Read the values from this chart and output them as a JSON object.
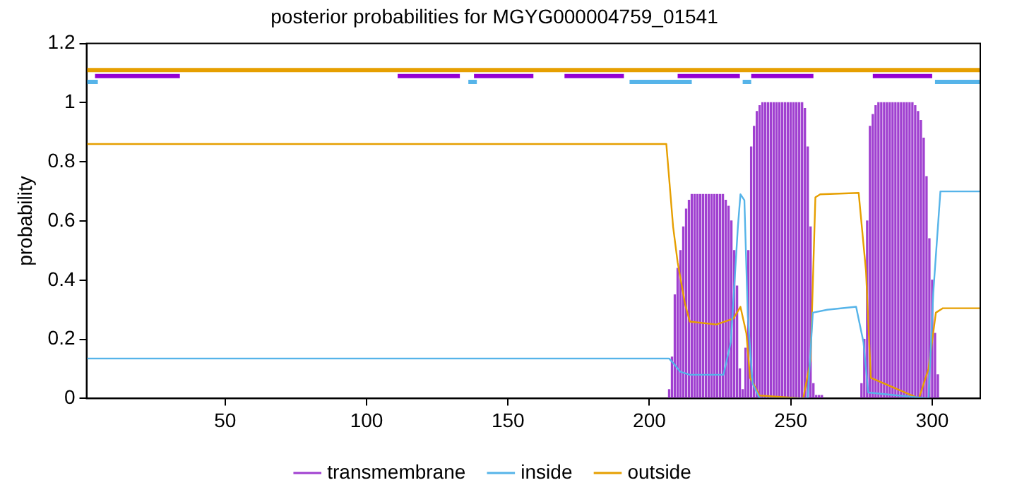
{
  "chart_data": {
    "type": "line",
    "title": "posterior probabilities for MGYG000004759_01541",
    "ylabel": "probability",
    "xlim": [
      1,
      317
    ],
    "xticks": [
      50,
      100,
      150,
      200,
      250,
      300
    ],
    "ylim": [
      0,
      1.2
    ],
    "yticks": [
      0,
      0.2,
      0.4,
      0.6,
      0.8,
      1,
      1.2
    ],
    "grid": false,
    "legend": "bottom",
    "marker": "none",
    "line_style": "solid",
    "series": [
      {
        "name": "transmembrane",
        "type": "bar",
        "color": "#a040d0",
        "x": [
          207,
          208,
          209,
          210,
          211,
          212,
          213,
          214,
          215,
          216,
          217,
          218,
          219,
          220,
          221,
          222,
          223,
          224,
          225,
          226,
          227,
          228,
          229,
          230,
          231,
          232,
          233,
          234,
          235,
          236,
          237,
          238,
          239,
          240,
          241,
          242,
          243,
          244,
          245,
          246,
          247,
          248,
          249,
          250,
          251,
          252,
          253,
          254,
          255,
          256,
          257,
          258,
          259,
          260,
          261,
          275,
          276,
          277,
          278,
          279,
          280,
          281,
          282,
          283,
          284,
          285,
          286,
          287,
          288,
          289,
          290,
          291,
          292,
          293,
          294,
          295,
          296,
          297,
          298,
          299,
          300,
          301,
          302
        ],
        "values": [
          0.03,
          0.14,
          0.35,
          0.44,
          0.5,
          0.58,
          0.64,
          0.67,
          0.69,
          0.69,
          0.69,
          0.69,
          0.69,
          0.69,
          0.69,
          0.69,
          0.69,
          0.69,
          0.69,
          0.69,
          0.67,
          0.65,
          0.6,
          0.5,
          0.38,
          0.1,
          0.03,
          0.17,
          0.5,
          0.85,
          0.92,
          0.97,
          0.99,
          1,
          1,
          1,
          1,
          1,
          1,
          1,
          1,
          1,
          1,
          1,
          1,
          1,
          1,
          1,
          0.98,
          0.85,
          0.58,
          0.05,
          0.01,
          0.01,
          0.01,
          0.05,
          0.2,
          0.6,
          0.92,
          0.96,
          0.99,
          1,
          1,
          1,
          1,
          1,
          1,
          1,
          1,
          1,
          1,
          1,
          1,
          1,
          0.99,
          0.97,
          0.94,
          0.88,
          0.75,
          0.54,
          0.4,
          0.22,
          0.08
        ]
      },
      {
        "name": "inside",
        "color": "#56b4e9",
        "x": [
          1,
          207,
          208.4,
          211,
          214.3,
          226.2,
          228.8,
          231.3,
          232.2,
          233.6,
          234.8,
          236.5,
          239,
          256,
          257.8,
          262.9,
          273.1,
          275.7,
          277.4,
          298.7,
          300.4,
          302.9,
          317
        ],
        "values": [
          0.135,
          0.135,
          0.12,
          0.09,
          0.08,
          0.08,
          0.19,
          0.58,
          0.69,
          0.67,
          0.28,
          0.05,
          0,
          0,
          0.29,
          0.3,
          0.31,
          0.19,
          0.02,
          0,
          0.36,
          0.7,
          0.7
        ]
      },
      {
        "name": "outside",
        "color": "#e69f00",
        "x": [
          1,
          206,
          208.4,
          210,
          212.6,
          214.3,
          223.7,
          229.7,
          232.2,
          234.3,
          235.6,
          239,
          254.4,
          257,
          258.7,
          260.4,
          274,
          276.6,
          278.3,
          295.3,
          298.7,
          301.3,
          303.8,
          317
        ],
        "values": [
          0.86,
          0.86,
          0.58,
          0.46,
          0.32,
          0.26,
          0.25,
          0.27,
          0.31,
          0.22,
          0.07,
          0.01,
          0,
          0.13,
          0.68,
          0.69,
          0.695,
          0.43,
          0.07,
          0,
          0.1,
          0.29,
          0.305,
          0.305
        ]
      },
      {
        "color": "#e69f00",
        "x": [
          1,
          317
        ],
        "values": [
          1.11,
          1.11
        ]
      },
      {
        "color": "#9400d3",
        "x": [
          4,
          34
        ],
        "values": [
          1.09,
          1.09
        ]
      },
      {
        "color": "#9400d3",
        "x": [
          111,
          133
        ],
        "values": [
          1.09,
          1.09
        ]
      },
      {
        "color": "#9400d3",
        "x": [
          138,
          159
        ],
        "values": [
          1.09,
          1.09
        ]
      },
      {
        "color": "#9400d3",
        "x": [
          170,
          191
        ],
        "values": [
          1.09,
          1.09
        ]
      },
      {
        "color": "#9400d3",
        "x": [
          210,
          232
        ],
        "values": [
          1.09,
          1.09
        ]
      },
      {
        "color": "#9400d3",
        "x": [
          236,
          258
        ],
        "values": [
          1.09,
          1.09
        ]
      },
      {
        "color": "#9400d3",
        "x": [
          279,
          300
        ],
        "values": [
          1.09,
          1.09
        ]
      },
      {
        "color": "#56b4e9",
        "x": [
          1,
          5
        ],
        "values": [
          1.07,
          1.07
        ]
      },
      {
        "color": "#56b4e9",
        "x": [
          136,
          139
        ],
        "values": [
          1.07,
          1.07
        ]
      },
      {
        "color": "#56b4e9",
        "x": [
          193,
          215
        ],
        "values": [
          1.07,
          1.07
        ]
      },
      {
        "color": "#56b4e9",
        "x": [
          233,
          236
        ],
        "values": [
          1.07,
          1.07
        ]
      },
      {
        "color": "#56b4e9",
        "x": [
          301,
          317
        ],
        "values": [
          1.07,
          1.07
        ]
      }
    ]
  }
}
